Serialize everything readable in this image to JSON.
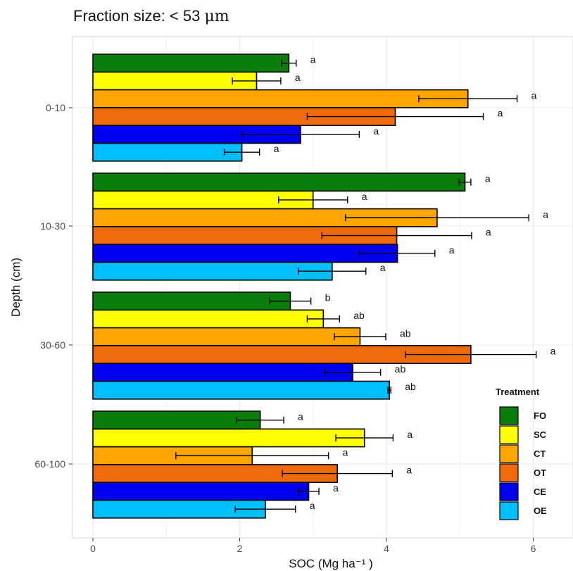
{
  "title_prefix": "Fraction size: < 53 ",
  "title_unit": "μm",
  "chart_data": {
    "type": "bar",
    "orientation": "horizontal",
    "title": "Fraction size: < 53 μm",
    "xlabel": "SOC (Mg ha⁻¹ )",
    "ylabel": "Depth (cm)",
    "xlim": [
      0,
      6.4
    ],
    "xticks": [
      0,
      2,
      4,
      6
    ],
    "grid": true,
    "legend_title": "Treatment",
    "legend_position": "bottom-right",
    "categories": [
      "0-10",
      "10-30",
      "30-60",
      "60-100"
    ],
    "series": [
      {
        "name": "FO",
        "color": "#0a7d0a",
        "values": [
          2.67,
          5.07,
          2.69,
          2.28
        ],
        "errors": [
          0.1,
          0.08,
          0.28,
          0.32
        ],
        "sig": [
          "a",
          "a",
          "b",
          "a"
        ]
      },
      {
        "name": "SC",
        "color": "#ffff00",
        "values": [
          2.23,
          3.0,
          3.14,
          3.7
        ],
        "errors": [
          0.33,
          0.47,
          0.22,
          0.39
        ],
        "sig": [
          "a",
          "a",
          "ab",
          "a"
        ]
      },
      {
        "name": "CT",
        "color": "#ffa500",
        "values": [
          5.11,
          4.69,
          3.64,
          2.17
        ],
        "errors": [
          0.67,
          1.25,
          0.35,
          1.04
        ],
        "sig": [
          "a",
          "a",
          "ab",
          "a"
        ]
      },
      {
        "name": "OT",
        "color": "#ee6a0a",
        "values": [
          4.12,
          4.14,
          5.15,
          3.33
        ],
        "errors": [
          1.2,
          1.02,
          0.89,
          0.75
        ],
        "sig": [
          "a",
          "a",
          "a",
          "a"
        ]
      },
      {
        "name": "CE",
        "color": "#0000ee",
        "values": [
          2.83,
          4.15,
          3.54,
          2.94
        ],
        "errors": [
          0.8,
          0.51,
          0.38,
          0.14
        ],
        "sig": [
          "a",
          "a",
          "ab",
          "a"
        ]
      },
      {
        "name": "OE",
        "color": "#00bfff",
        "values": [
          2.03,
          3.26,
          4.04,
          2.35
        ],
        "errors": [
          0.24,
          0.46,
          0.02,
          0.41
        ],
        "sig": [
          "a",
          "a",
          "ab",
          "a"
        ]
      }
    ]
  }
}
